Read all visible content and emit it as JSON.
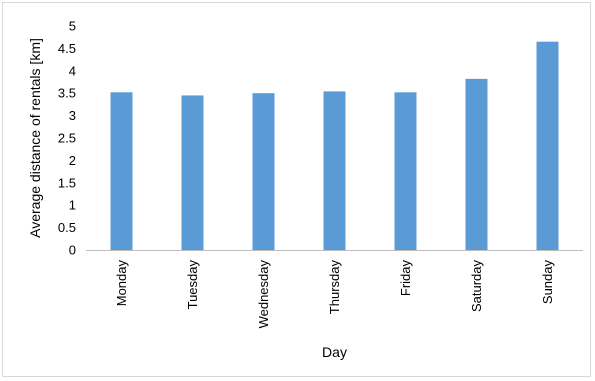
{
  "chart_data": {
    "type": "bar",
    "title": "",
    "xlabel": "Day",
    "ylabel": "Average distance of rentals [km]",
    "categories": [
      "Monday",
      "Tuesday",
      "Wednesday",
      "Thursday",
      "Friday",
      "Saturday",
      "Sunday"
    ],
    "values": [
      3.52,
      3.45,
      3.5,
      3.54,
      3.52,
      3.82,
      4.65
    ],
    "ylim": [
      0,
      5
    ],
    "yticks": [
      "0",
      "0.5",
      "1",
      "1.5",
      "2",
      "2.5",
      "3",
      "3.5",
      "4",
      "4.5",
      "5"
    ],
    "grid": false,
    "legend": "none",
    "bar_color": "#5b9bd5",
    "axis_color": "#bfbfbf"
  }
}
